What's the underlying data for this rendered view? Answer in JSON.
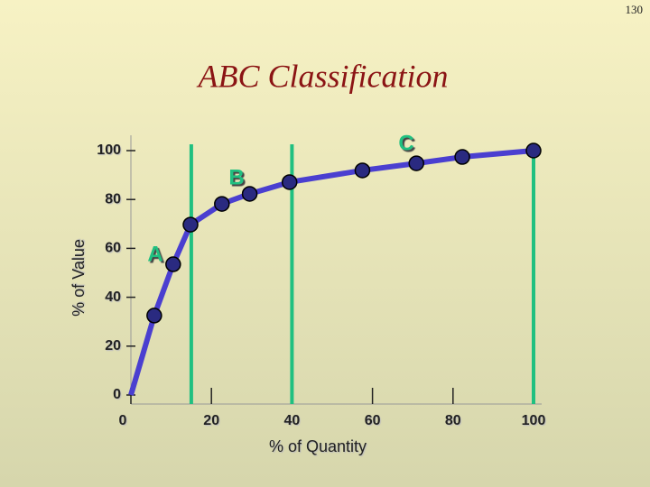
{
  "page_number": "130",
  "chart_data": {
    "type": "line",
    "title": "ABC Classification",
    "x_label": "% of Quantity",
    "y_label": "% of Value",
    "x": [
      0,
      5.8,
      10.5,
      14.8,
      22.6,
      29.5,
      39.4,
      57.5,
      70.9,
      82.3,
      100
    ],
    "values": [
      0,
      32.5,
      53.5,
      69.7,
      78.2,
      82.3,
      87.1,
      91.9,
      94.8,
      97.4,
      100
    ],
    "color": "#4a3fd0",
    "marker_color": "#2a2a80",
    "boundaries": [
      15,
      40,
      100
    ],
    "boundary_color": "#20c080",
    "class_labels": [
      "A",
      "B",
      "C"
    ],
    "xlim": [
      0,
      100
    ],
    "ylim": [
      0,
      100
    ],
    "xticks": [
      0,
      20,
      40,
      60,
      80,
      100
    ],
    "yticks": [
      0,
      20,
      40,
      60,
      80,
      100
    ]
  }
}
